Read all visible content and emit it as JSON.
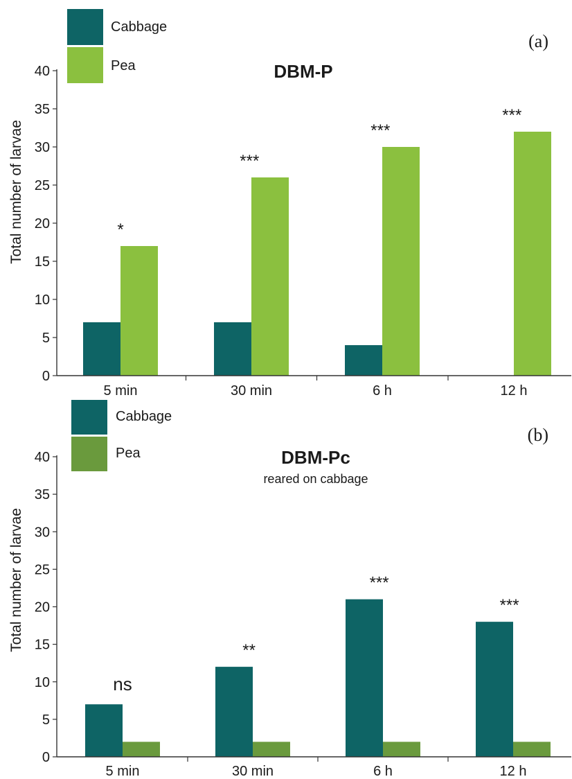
{
  "colors": {
    "cabbage": "#0e6465",
    "pea_a": "#8bc03f",
    "pea_b": "#6a9a3d",
    "axis": "#333333",
    "text": "#1a1a1a"
  },
  "chart_data": [
    {
      "type": "bar",
      "panel_label": "(a)",
      "title": "DBM-P",
      "subtitle": "",
      "ylabel": "Total number of larvae",
      "xlabel": "",
      "ylim": [
        0,
        40
      ],
      "yticks": [
        "0",
        "5",
        "10",
        "15",
        "20",
        "25",
        "30",
        "35",
        "40"
      ],
      "categories": [
        "5 min",
        "30 min",
        "6 h",
        "12 h"
      ],
      "series": [
        {
          "name": "Cabbage",
          "values": [
            7,
            7,
            4,
            0
          ]
        },
        {
          "name": "Pea",
          "values": [
            17,
            26,
            30,
            32
          ]
        }
      ],
      "significance": [
        "*",
        "***",
        "***",
        "***"
      ],
      "legend": "top-left",
      "grid": false
    },
    {
      "type": "bar",
      "panel_label": "(b)",
      "title": "DBM-Pc",
      "subtitle": "reared on cabbage",
      "ylabel": "Total number of larvae",
      "xlabel": "",
      "ylim": [
        0,
        40
      ],
      "yticks": [
        "0",
        "5",
        "10",
        "15",
        "20",
        "25",
        "30",
        "35",
        "40"
      ],
      "categories": [
        "5 min",
        "30 min",
        "6 h",
        "12 h"
      ],
      "series": [
        {
          "name": "Cabbage",
          "values": [
            7,
            12,
            21,
            18
          ]
        },
        {
          "name": "Pea",
          "values": [
            2,
            2,
            2,
            2
          ]
        }
      ],
      "significance": [
        "ns",
        "**",
        "***",
        "***"
      ],
      "legend": "top-left",
      "grid": false
    }
  ]
}
